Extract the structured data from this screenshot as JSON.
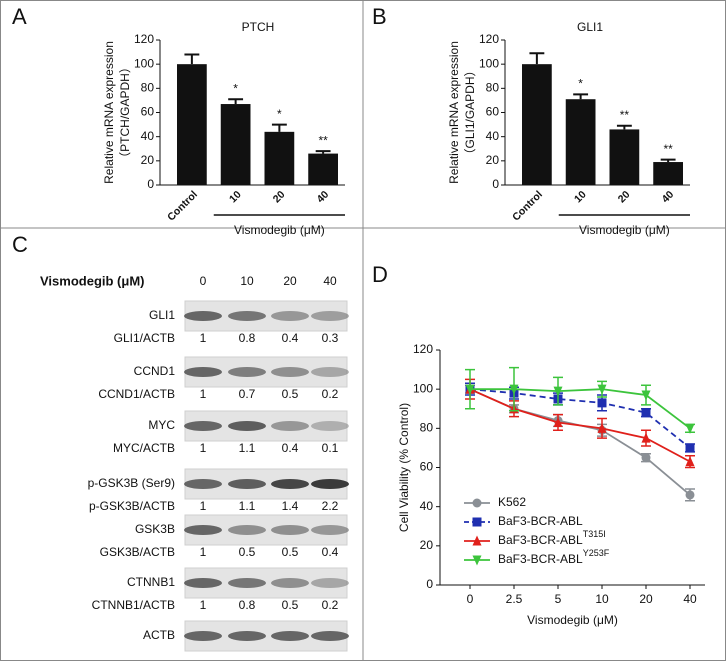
{
  "panel_labels": [
    "A",
    "B",
    "C",
    "D"
  ],
  "chart_data": [
    {
      "type": "bar",
      "title": "PTCH",
      "ylabel": [
        "Relative mRNA expression",
        "（PTCH/GAPDH）"
      ],
      "xlabel": "Vismodegib (μM)",
      "categories": [
        "Control",
        "10",
        "20",
        "40"
      ],
      "values": [
        100,
        67,
        44,
        26
      ],
      "errors": [
        8,
        4,
        6,
        2
      ],
      "annotations": [
        null,
        "*",
        "*",
        "**"
      ],
      "color": "#111111",
      "ylim": [
        0,
        120
      ],
      "yticks": [
        0,
        20,
        40,
        60,
        80,
        100,
        120
      ]
    },
    {
      "type": "bar",
      "title": "GLI1",
      "ylabel": [
        "Relative mRNA expression",
        "（GLI1/GAPDH）"
      ],
      "xlabel": "Vismodegib (μM)",
      "categories": [
        "Control",
        "10",
        "20",
        "40"
      ],
      "values": [
        100,
        71,
        46,
        19
      ],
      "errors": [
        9,
        4,
        3,
        2
      ],
      "annotations": [
        null,
        "*",
        "**",
        "**"
      ],
      "color": "#111111",
      "ylim": [
        0,
        120
      ],
      "yticks": [
        0,
        20,
        40,
        60,
        80,
        100,
        120
      ]
    },
    {
      "type": "line",
      "ylabel": "Cell Viability (% Control)",
      "xlabel": "Vismodegib (μM)",
      "categories": [
        "0",
        "2.5",
        "5",
        "10",
        "20",
        "40"
      ],
      "ylim": [
        0,
        120
      ],
      "yticks": [
        0,
        20,
        40,
        60,
        80,
        100,
        120
      ],
      "legend": "lower left",
      "series": [
        {
          "name": "K562",
          "color": "#8a8f95",
          "marker": "circle",
          "linestyle": "solid",
          "values": [
            100,
            90,
            84,
            79,
            65,
            46
          ],
          "errors": [
            2,
            2,
            3,
            3,
            2,
            3
          ]
        },
        {
          "name": "BaF3-BCR-ABL",
          "color": "#1f2fb0",
          "marker": "square",
          "linestyle": "dashed",
          "values": [
            100,
            98,
            95,
            93,
            88,
            70
          ],
          "errors": [
            3,
            3,
            3,
            4,
            2,
            2
          ]
        },
        {
          "name": "BaF3-BCR-ABL",
          "superscript": "T315I",
          "color": "#e0201b",
          "marker": "triangle-up",
          "linestyle": "solid",
          "values": [
            100,
            90,
            83,
            80,
            75,
            63
          ],
          "errors": [
            5,
            4,
            4,
            5,
            4,
            3
          ]
        },
        {
          "name": "BaF3-BCR-ABL",
          "superscript": "Y253F",
          "color": "#3cc43c",
          "marker": "triangle-down",
          "linestyle": "solid",
          "values": [
            100,
            100,
            99,
            100,
            97,
            80
          ],
          "errors": [
            10,
            11,
            7,
            4,
            5,
            2
          ]
        }
      ]
    }
  ],
  "western_blot": {
    "header": "Vismodegib (μM)",
    "concentrations": [
      "0",
      "10",
      "20",
      "40"
    ],
    "rows": [
      {
        "label": "GLI1",
        "ratio_label": "GLI1/ACTB",
        "ratios": [
          1,
          0.8,
          0.4,
          0.3
        ]
      },
      {
        "label": "CCND1",
        "ratio_label": "CCND1/ACTB",
        "ratios": [
          1,
          0.7,
          0.5,
          0.2
        ]
      },
      {
        "label": "MYC",
        "ratio_label": "MYC/ACTB",
        "ratios": [
          1,
          1.1,
          0.4,
          0.1
        ]
      },
      {
        "label": "p-GSK3B (Ser9)",
        "ratio_label": "p-GSK3B/ACTB",
        "ratios": [
          1,
          1.1,
          1.4,
          2.2
        ]
      },
      {
        "label": "GSK3B",
        "ratio_label": "GSK3B/ACTB",
        "ratios": [
          1,
          0.5,
          0.5,
          0.4
        ]
      },
      {
        "label": "CTNNB1",
        "ratio_label": "CTNNB1/ACTB",
        "ratios": [
          1,
          0.8,
          0.5,
          0.2
        ]
      },
      {
        "label": "ACTB"
      }
    ]
  }
}
